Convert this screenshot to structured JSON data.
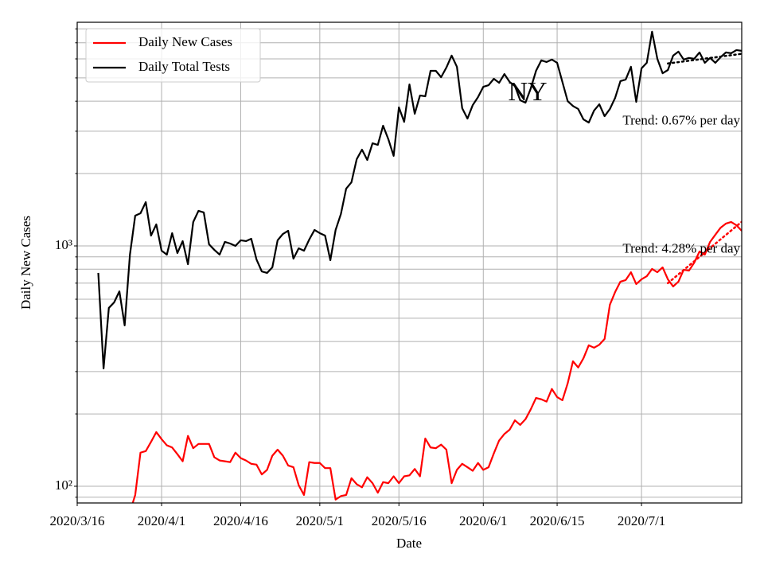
{
  "chart_data": {
    "type": "line",
    "xlabel": "Date",
    "ylabel": "Daily New Cases",
    "annotation": "NY",
    "log_scale_y": true,
    "grid": true,
    "legend": "upper left",
    "xlim": [
      "2020-03-16",
      "2020-07-20"
    ],
    "xticks": [
      {
        "value": "2020-03-16",
        "label": "2020/3/16"
      },
      {
        "value": "2020-04-01",
        "label": "2020/4/1"
      },
      {
        "value": "2020-04-16",
        "label": "2020/4/16"
      },
      {
        "value": "2020-05-01",
        "label": "2020/5/1"
      },
      {
        "value": "2020-05-16",
        "label": "2020/5/16"
      },
      {
        "value": "2020-06-01",
        "label": "2020/6/1"
      },
      {
        "value": "2020-06-15",
        "label": "2020/6/15"
      },
      {
        "value": "2020-07-01",
        "label": "2020/7/1"
      }
    ],
    "ylim": [
      85.2,
      8520
    ],
    "yticks": [
      {
        "value": 100,
        "label": "10²"
      },
      {
        "value": 1000,
        "label": "10³"
      }
    ],
    "yminorticks": [
      90,
      200,
      300,
      400,
      500,
      600,
      700,
      800,
      900,
      2000,
      3000,
      4000,
      5000,
      6000,
      7000,
      8000
    ],
    "x": [
      "2020-03-20",
      "2020-03-21",
      "2020-03-22",
      "2020-03-23",
      "2020-03-24",
      "2020-03-25",
      "2020-03-26",
      "2020-03-27",
      "2020-03-28",
      "2020-03-29",
      "2020-03-30",
      "2020-03-31",
      "2020-04-01",
      "2020-04-02",
      "2020-04-03",
      "2020-04-04",
      "2020-04-05",
      "2020-04-06",
      "2020-04-07",
      "2020-04-08",
      "2020-04-09",
      "2020-04-10",
      "2020-04-11",
      "2020-04-12",
      "2020-04-13",
      "2020-04-14",
      "2020-04-15",
      "2020-04-16",
      "2020-04-17",
      "2020-04-18",
      "2020-04-19",
      "2020-04-20",
      "2020-04-21",
      "2020-04-22",
      "2020-04-23",
      "2020-04-24",
      "2020-04-25",
      "2020-04-26",
      "2020-04-27",
      "2020-04-28",
      "2020-04-29",
      "2020-04-30",
      "2020-05-01",
      "2020-05-02",
      "2020-05-03",
      "2020-05-04",
      "2020-05-05",
      "2020-05-06",
      "2020-05-07",
      "2020-05-08",
      "2020-05-09",
      "2020-05-10",
      "2020-05-11",
      "2020-05-12",
      "2020-05-13",
      "2020-05-14",
      "2020-05-15",
      "2020-05-16",
      "2020-05-17",
      "2020-05-18",
      "2020-05-19",
      "2020-05-20",
      "2020-05-21",
      "2020-05-22",
      "2020-05-23",
      "2020-05-24",
      "2020-05-25",
      "2020-05-26",
      "2020-05-27",
      "2020-05-28",
      "2020-05-29",
      "2020-05-30",
      "2020-05-31",
      "2020-06-01",
      "2020-06-02",
      "2020-06-03",
      "2020-06-04",
      "2020-06-05",
      "2020-06-06",
      "2020-06-07",
      "2020-06-08",
      "2020-06-09",
      "2020-06-10",
      "2020-06-11",
      "2020-06-12",
      "2020-06-13",
      "2020-06-14",
      "2020-06-15",
      "2020-06-16",
      "2020-06-17",
      "2020-06-18",
      "2020-06-19",
      "2020-06-20",
      "2020-06-21",
      "2020-06-22",
      "2020-06-23",
      "2020-06-24",
      "2020-06-25",
      "2020-06-26",
      "2020-06-27",
      "2020-06-28",
      "2020-06-29",
      "2020-06-30",
      "2020-07-01",
      "2020-07-02",
      "2020-07-03",
      "2020-07-04",
      "2020-07-05",
      "2020-07-06",
      "2020-07-07",
      "2020-07-08",
      "2020-07-09",
      "2020-07-10",
      "2020-07-11",
      "2020-07-12",
      "2020-07-13",
      "2020-07-14",
      "2020-07-15",
      "2020-07-16",
      "2020-07-17",
      "2020-07-18",
      "2020-07-19",
      "2020-07-20"
    ],
    "series": [
      {
        "name": "Daily New Cases",
        "color": "#ff0000",
        "values": [
          null,
          null,
          null,
          null,
          null,
          null,
          78,
          92,
          138,
          140,
          153,
          168,
          157,
          148,
          145,
          136,
          127,
          162,
          144,
          150,
          150,
          150,
          132,
          128,
          127,
          126,
          138,
          131,
          128,
          124,
          123,
          112,
          117,
          134,
          142,
          134,
          122,
          120,
          101,
          92,
          126,
          125,
          125,
          119,
          119,
          88,
          91,
          92,
          108,
          102,
          99,
          109,
          103,
          94,
          104,
          103,
          110,
          103,
          110,
          111,
          118,
          110,
          158,
          145,
          144,
          149,
          142,
          103,
          117,
          124,
          120,
          116,
          125,
          117,
          120,
          137,
          155,
          165,
          172,
          188,
          180,
          190,
          209,
          233,
          230,
          225,
          254,
          235,
          228,
          268,
          331,
          312,
          341,
          386,
          377,
          388,
          410,
          569,
          643,
          710,
          721,
          777,
          694,
          726,
          748,
          802,
          777,
          814,
          726,
          678,
          710,
          796,
          789,
          852,
          948,
          920,
          1039,
          1113,
          1191,
          1238,
          1257,
          1219,
          1156
        ]
      },
      {
        "name": "Daily Total Tests",
        "color": "#000000",
        "values": [
          772,
          309,
          552,
          582,
          647,
          467,
          920,
          1336,
          1367,
          1521,
          1104,
          1229,
          955,
          920,
          1130,
          934,
          1047,
          839,
          1257,
          1399,
          1378,
          1015,
          963,
          920,
          1039,
          1023,
          1000,
          1055,
          1047,
          1071,
          878,
          783,
          772,
          814,
          1055,
          1121,
          1156,
          885,
          977,
          955,
          1063,
          1165,
          1130,
          1104,
          872,
          1165,
          1357,
          1731,
          1840,
          2296,
          2515,
          2278,
          2674,
          2633,
          3163,
          2778,
          2370,
          3771,
          3283,
          4699,
          3546,
          4226,
          4193,
          5351,
          5351,
          5035,
          5521,
          6193,
          5563,
          3741,
          3387,
          3853,
          4161,
          4592,
          4663,
          4958,
          4772,
          5188,
          4810,
          4627,
          4036,
          3945,
          4522,
          5351,
          5916,
          5823,
          5962,
          5779,
          4810,
          4005,
          3821,
          3712,
          3359,
          3260,
          3657,
          3884,
          3465,
          3712,
          4130,
          4847,
          4922,
          5563,
          3975,
          5479,
          5779,
          7787,
          6007,
          5228,
          5392,
          6193,
          6432,
          5962,
          6053,
          6007,
          6383,
          5779,
          6053,
          5779,
          6099,
          6383,
          6335,
          6528,
          6480
        ]
      }
    ],
    "trends": [
      {
        "label": "Trend: 0.67% per day",
        "color": "#000000",
        "linestyle": "dotted",
        "x": [
          "2020-07-06",
          "2020-07-20"
        ],
        "values": [
          5740,
          6300
        ]
      },
      {
        "label": "Trend: 4.28% per day",
        "color": "#ff0000",
        "linestyle": "dotted",
        "x": [
          "2020-07-06",
          "2020-07-20"
        ],
        "values": [
          700,
          1260
        ]
      }
    ]
  }
}
